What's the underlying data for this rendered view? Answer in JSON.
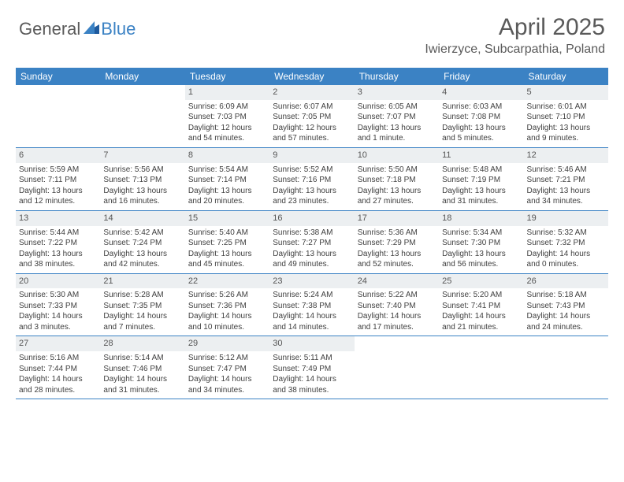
{
  "logo": {
    "text1": "General",
    "text2": "Blue"
  },
  "title": "April 2025",
  "location": "Iwierzyce, Subcarpathia, Poland",
  "colors": {
    "header_bg": "#3b82c4",
    "header_text": "#ffffff",
    "daynum_bg": "#eceff1",
    "body_text": "#404040",
    "title_text": "#5a5a5a",
    "logo_gray": "#5a5a5a",
    "logo_blue": "#3b82c4",
    "background": "#ffffff"
  },
  "fonts": {
    "title_size": 30,
    "location_size": 16,
    "dow_size": 12,
    "daynum_size": 11,
    "body_size": 10
  },
  "dow": [
    "Sunday",
    "Monday",
    "Tuesday",
    "Wednesday",
    "Thursday",
    "Friday",
    "Saturday"
  ],
  "weeks": [
    [
      {
        "blank": true
      },
      {
        "blank": true
      },
      {
        "day": "1",
        "sunrise": "Sunrise: 6:09 AM",
        "sunset": "Sunset: 7:03 PM",
        "daylight": "Daylight: 12 hours and 54 minutes."
      },
      {
        "day": "2",
        "sunrise": "Sunrise: 6:07 AM",
        "sunset": "Sunset: 7:05 PM",
        "daylight": "Daylight: 12 hours and 57 minutes."
      },
      {
        "day": "3",
        "sunrise": "Sunrise: 6:05 AM",
        "sunset": "Sunset: 7:07 PM",
        "daylight": "Daylight: 13 hours and 1 minute."
      },
      {
        "day": "4",
        "sunrise": "Sunrise: 6:03 AM",
        "sunset": "Sunset: 7:08 PM",
        "daylight": "Daylight: 13 hours and 5 minutes."
      },
      {
        "day": "5",
        "sunrise": "Sunrise: 6:01 AM",
        "sunset": "Sunset: 7:10 PM",
        "daylight": "Daylight: 13 hours and 9 minutes."
      }
    ],
    [
      {
        "day": "6",
        "sunrise": "Sunrise: 5:59 AM",
        "sunset": "Sunset: 7:11 PM",
        "daylight": "Daylight: 13 hours and 12 minutes."
      },
      {
        "day": "7",
        "sunrise": "Sunrise: 5:56 AM",
        "sunset": "Sunset: 7:13 PM",
        "daylight": "Daylight: 13 hours and 16 minutes."
      },
      {
        "day": "8",
        "sunrise": "Sunrise: 5:54 AM",
        "sunset": "Sunset: 7:14 PM",
        "daylight": "Daylight: 13 hours and 20 minutes."
      },
      {
        "day": "9",
        "sunrise": "Sunrise: 5:52 AM",
        "sunset": "Sunset: 7:16 PM",
        "daylight": "Daylight: 13 hours and 23 minutes."
      },
      {
        "day": "10",
        "sunrise": "Sunrise: 5:50 AM",
        "sunset": "Sunset: 7:18 PM",
        "daylight": "Daylight: 13 hours and 27 minutes."
      },
      {
        "day": "11",
        "sunrise": "Sunrise: 5:48 AM",
        "sunset": "Sunset: 7:19 PM",
        "daylight": "Daylight: 13 hours and 31 minutes."
      },
      {
        "day": "12",
        "sunrise": "Sunrise: 5:46 AM",
        "sunset": "Sunset: 7:21 PM",
        "daylight": "Daylight: 13 hours and 34 minutes."
      }
    ],
    [
      {
        "day": "13",
        "sunrise": "Sunrise: 5:44 AM",
        "sunset": "Sunset: 7:22 PM",
        "daylight": "Daylight: 13 hours and 38 minutes."
      },
      {
        "day": "14",
        "sunrise": "Sunrise: 5:42 AM",
        "sunset": "Sunset: 7:24 PM",
        "daylight": "Daylight: 13 hours and 42 minutes."
      },
      {
        "day": "15",
        "sunrise": "Sunrise: 5:40 AM",
        "sunset": "Sunset: 7:25 PM",
        "daylight": "Daylight: 13 hours and 45 minutes."
      },
      {
        "day": "16",
        "sunrise": "Sunrise: 5:38 AM",
        "sunset": "Sunset: 7:27 PM",
        "daylight": "Daylight: 13 hours and 49 minutes."
      },
      {
        "day": "17",
        "sunrise": "Sunrise: 5:36 AM",
        "sunset": "Sunset: 7:29 PM",
        "daylight": "Daylight: 13 hours and 52 minutes."
      },
      {
        "day": "18",
        "sunrise": "Sunrise: 5:34 AM",
        "sunset": "Sunset: 7:30 PM",
        "daylight": "Daylight: 13 hours and 56 minutes."
      },
      {
        "day": "19",
        "sunrise": "Sunrise: 5:32 AM",
        "sunset": "Sunset: 7:32 PM",
        "daylight": "Daylight: 14 hours and 0 minutes."
      }
    ],
    [
      {
        "day": "20",
        "sunrise": "Sunrise: 5:30 AM",
        "sunset": "Sunset: 7:33 PM",
        "daylight": "Daylight: 14 hours and 3 minutes."
      },
      {
        "day": "21",
        "sunrise": "Sunrise: 5:28 AM",
        "sunset": "Sunset: 7:35 PM",
        "daylight": "Daylight: 14 hours and 7 minutes."
      },
      {
        "day": "22",
        "sunrise": "Sunrise: 5:26 AM",
        "sunset": "Sunset: 7:36 PM",
        "daylight": "Daylight: 14 hours and 10 minutes."
      },
      {
        "day": "23",
        "sunrise": "Sunrise: 5:24 AM",
        "sunset": "Sunset: 7:38 PM",
        "daylight": "Daylight: 14 hours and 14 minutes."
      },
      {
        "day": "24",
        "sunrise": "Sunrise: 5:22 AM",
        "sunset": "Sunset: 7:40 PM",
        "daylight": "Daylight: 14 hours and 17 minutes."
      },
      {
        "day": "25",
        "sunrise": "Sunrise: 5:20 AM",
        "sunset": "Sunset: 7:41 PM",
        "daylight": "Daylight: 14 hours and 21 minutes."
      },
      {
        "day": "26",
        "sunrise": "Sunrise: 5:18 AM",
        "sunset": "Sunset: 7:43 PM",
        "daylight": "Daylight: 14 hours and 24 minutes."
      }
    ],
    [
      {
        "day": "27",
        "sunrise": "Sunrise: 5:16 AM",
        "sunset": "Sunset: 7:44 PM",
        "daylight": "Daylight: 14 hours and 28 minutes."
      },
      {
        "day": "28",
        "sunrise": "Sunrise: 5:14 AM",
        "sunset": "Sunset: 7:46 PM",
        "daylight": "Daylight: 14 hours and 31 minutes."
      },
      {
        "day": "29",
        "sunrise": "Sunrise: 5:12 AM",
        "sunset": "Sunset: 7:47 PM",
        "daylight": "Daylight: 14 hours and 34 minutes."
      },
      {
        "day": "30",
        "sunrise": "Sunrise: 5:11 AM",
        "sunset": "Sunset: 7:49 PM",
        "daylight": "Daylight: 14 hours and 38 minutes."
      },
      {
        "blank": true
      },
      {
        "blank": true
      },
      {
        "blank": true
      }
    ]
  ]
}
